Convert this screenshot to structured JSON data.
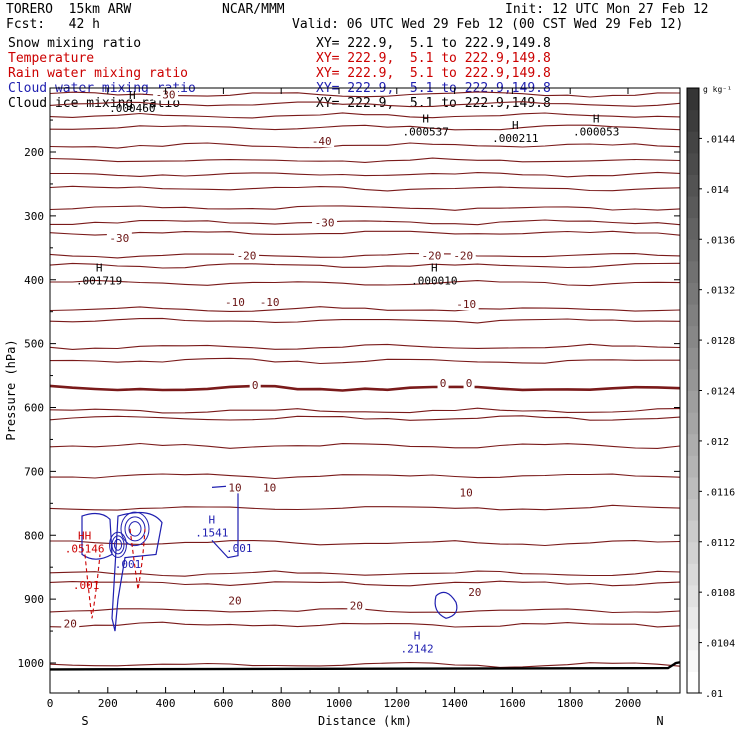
{
  "header": {
    "model": "TORERO  15km ARW",
    "center": "NCAR/MMM",
    "init": "Init: 12 UTC Mon 27 Feb 12",
    "fcst": "Fcst:   42 h",
    "valid": "Valid: 06 UTC Wed 29 Feb 12 (00 CST Wed 29 Feb 12)"
  },
  "fields": [
    {
      "label": "Snow mixing ratio",
      "xy": "XY= 222.9,  5.1 to 222.9,149.8",
      "color": "#000000"
    },
    {
      "label": "Temperature",
      "xy": "XY= 222.9,  5.1 to 222.9,149.8",
      "color": "#cc0000"
    },
    {
      "label": "Rain water mixing ratio",
      "xy": "XY= 222.9,  5.1 to 222.9,149.8",
      "color": "#cc0000"
    },
    {
      "label": "Cloud water mixing ratio",
      "xy": "XY= 222.9,  5.1 to 222.9,149.8",
      "color": "#1f1fb0"
    },
    {
      "label": "Cloud ice mixing ratio",
      "xy": "XY= 222.9,  5.1 to 222.9,149.8",
      "color": "#000000"
    }
  ],
  "chart_data": {
    "type": "cross-section contour",
    "xlabel": "Distance (km)",
    "ylabel": "Pressure (hPa)",
    "xlim": [
      0,
      2180
    ],
    "ylim": [
      1050,
      100
    ],
    "x_ticks": [
      "0",
      "200",
      "400",
      "600",
      "800",
      "1000",
      "1200",
      "1400",
      "1600",
      "1800",
      "2000"
    ],
    "x_tick_values": [
      0,
      200,
      400,
      600,
      800,
      1000,
      1200,
      1400,
      1600,
      1800,
      2000
    ],
    "y_ticks": [
      "200",
      "300",
      "400",
      "500",
      "600",
      "700",
      "800",
      "900",
      "1000"
    ],
    "y_tick_values": [
      200,
      300,
      400,
      500,
      600,
      700,
      800,
      900,
      1000
    ],
    "left_end": "S",
    "right_end": "N",
    "temperature_isotherms_hPa": [
      1003,
      940,
      918,
      875,
      860,
      812,
      757,
      707,
      660,
      617,
      605,
      570,
      527,
      505,
      464,
      446,
      405,
      378,
      362,
      327,
      310,
      288,
      257,
      235,
      213,
      190,
      162,
      143,
      125,
      110
    ],
    "temperature_labels": [
      {
        "text": "-30",
        "x": 240,
        "p": 335
      },
      {
        "text": "-30",
        "x": 950,
        "p": 310
      },
      {
        "text": "-40",
        "x": 940,
        "p": 183
      },
      {
        "text": "-30",
        "x": 400,
        "p": 110
      },
      {
        "text": "-20",
        "x": 680,
        "p": 362
      },
      {
        "text": "-20",
        "x": 1320,
        "p": 362
      },
      {
        "text": "-20",
        "x": 1430,
        "p": 362
      },
      {
        "text": "-10",
        "x": 640,
        "p": 435
      },
      {
        "text": "-10",
        "x": 760,
        "p": 435
      },
      {
        "text": "-10",
        "x": 1440,
        "p": 438
      },
      {
        "text": "0",
        "x": 710,
        "p": 565
      },
      {
        "text": "0",
        "x": 1360,
        "p": 562
      },
      {
        "text": "0",
        "x": 1450,
        "p": 562
      },
      {
        "text": "10",
        "x": 640,
        "p": 725
      },
      {
        "text": "10",
        "x": 760,
        "p": 725
      },
      {
        "text": "10",
        "x": 1440,
        "p": 733
      },
      {
        "text": "20",
        "x": 640,
        "p": 902
      },
      {
        "text": "20",
        "x": 1060,
        "p": 910
      },
      {
        "text": "20",
        "x": 1470,
        "p": 889
      },
      {
        "text": "20",
        "x": 70,
        "p": 938
      }
    ],
    "extrema": [
      {
        "mark": "H",
        "value": ".000537",
        "x": 1300,
        "p": 157,
        "color": "#000000"
      },
      {
        "mark": "H",
        "value": ".000211",
        "x": 1610,
        "p": 167,
        "color": "#000000"
      },
      {
        "mark": "H",
        "value": ".000053",
        "x": 1890,
        "p": 157,
        "color": "#000000"
      },
      {
        "mark": "H",
        "value": ".001719",
        "x": 170,
        "p": 390,
        "color": "#000000"
      },
      {
        "mark": "H",
        "value": ".000010",
        "x": 1330,
        "p": 390,
        "color": "#000000"
      },
      {
        "mark": "H",
        "value": ".000460",
        "x": 285,
        "p": 120,
        "color": "#000000"
      },
      {
        "mark": "H",
        "value": ".1541",
        "x": 560,
        "p": 785,
        "color": "#1f1fb0"
      },
      {
        "mark": "H",
        "value": ".2142",
        "x": 1270,
        "p": 966,
        "color": "#1f1fb0"
      },
      {
        "mark": "HH",
        "value": ".05146",
        "x": 120,
        "p": 810,
        "color": "#cc0000"
      }
    ],
    "contour_values": [
      {
        "text": ".001",
        "x": 655,
        "p": 820,
        "color": "#1f1fb0"
      },
      {
        "text": ".001",
        "x": 270,
        "p": 845,
        "color": "#1f1fb0"
      },
      {
        "text": ".001",
        "x": 125,
        "p": 878,
        "color": "#cc0000"
      }
    ],
    "colorbar": {
      "unit": "g kg⁻¹",
      "min": 0.01,
      "max": 0.0148,
      "labels": [
        ".0144",
        ".014",
        ".0136",
        ".0132",
        ".0128",
        ".0124",
        ".012",
        ".0116",
        ".0112",
        ".0108",
        ".0104",
        ".01"
      ],
      "values": [
        0.0144,
        0.014,
        0.0136,
        0.0132,
        0.0128,
        0.0124,
        0.012,
        0.0116,
        0.0112,
        0.0108,
        0.0104,
        0.01
      ]
    }
  }
}
